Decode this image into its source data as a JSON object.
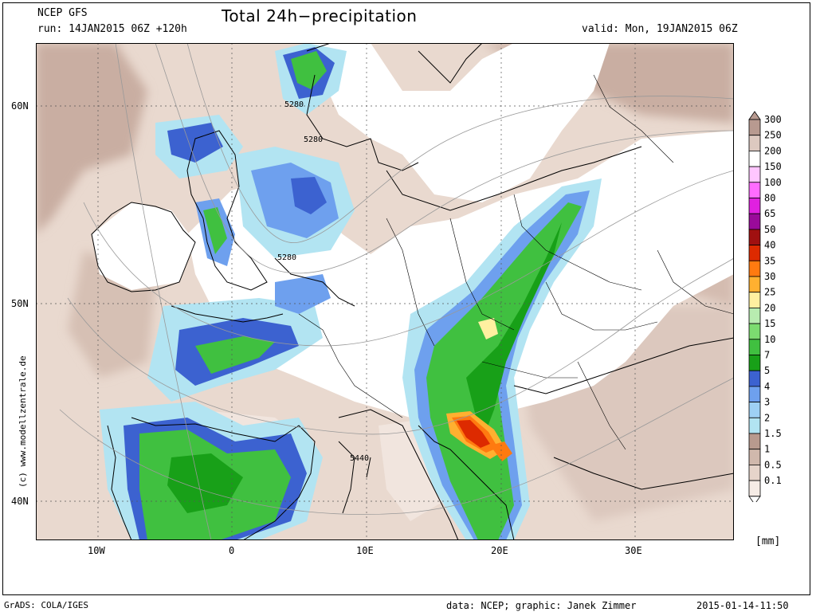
{
  "header": {
    "model": "NCEP GFS",
    "run": "run: 14JAN2015 06Z +120h",
    "title": "Total 24h−precipitation",
    "valid": "valid: Mon, 19JAN2015 06Z"
  },
  "map": {
    "lat_labels": [
      "60N",
      "50N",
      "40N"
    ],
    "lon_labels": [
      "10W",
      "0",
      "10E",
      "20E",
      "30E"
    ],
    "contour_labels": [
      "5280",
      "5280",
      "5280",
      "5440"
    ],
    "watermark": "(c)  www.modellzentrale.de",
    "colors": {
      "land": "#ffffff",
      "ocean": "#e9d9cf",
      "coast": "#000000"
    }
  },
  "legend": {
    "unit": "[mm]",
    "levels": [
      "300",
      "250",
      "200",
      "150",
      "100",
      "80",
      "65",
      "50",
      "40",
      "35",
      "30",
      "25",
      "20",
      "15",
      "10",
      "7",
      "5",
      "4",
      "3",
      "2",
      "1.5",
      "1",
      "0.5",
      "0.1"
    ],
    "colors": [
      "#b89a90",
      "#ddc9c0",
      "#ffffff",
      "#ffc6ff",
      "#ff6cff",
      "#e020e0",
      "#9a0a9a",
      "#a01010",
      "#dd2a00",
      "#ff7a10",
      "#ffb030",
      "#fff0a0",
      "#b8ecb0",
      "#7cdc70",
      "#40c040",
      "#18a018",
      "#3c62d0",
      "#6ea0ee",
      "#9ed0f4",
      "#b2e4f2",
      "#b89a8e",
      "#d0b8ac",
      "#e6d4ca",
      "#f6ece6"
    ]
  },
  "footer": {
    "left": "GrADS: COLA/IGES",
    "center": "data: NCEP; graphic: Janek Zimmer",
    "right": "2015-01-14-11:50"
  }
}
